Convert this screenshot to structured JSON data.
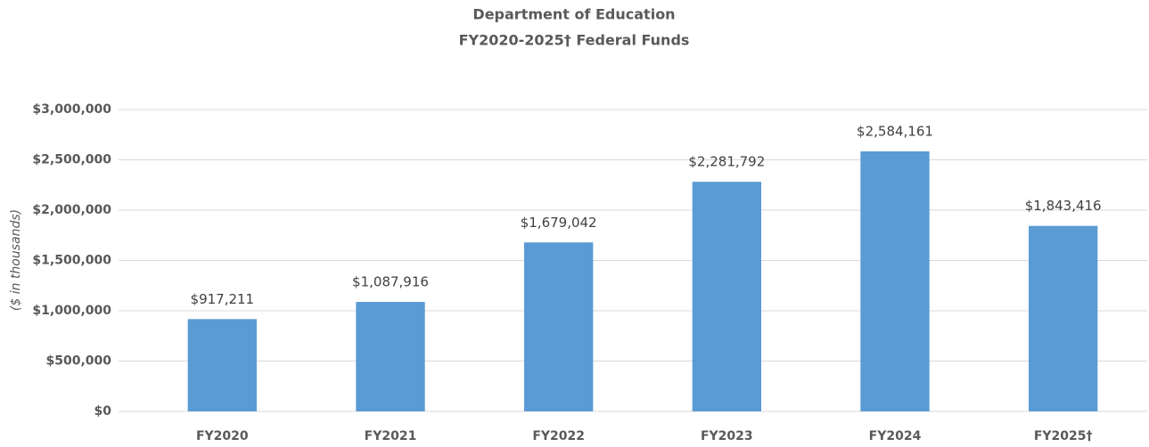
{
  "chart_data": {
    "type": "bar",
    "title": "Department of Education",
    "subtitle": "FY2020-2025† Federal Funds",
    "y_axis_label": "($ in thousands)",
    "categories": [
      "FY2020",
      "FY2021",
      "FY2022",
      "FY2023",
      "FY2024",
      "FY2025†"
    ],
    "values": [
      917211,
      1087916,
      1679042,
      2281792,
      2584161,
      1843416
    ],
    "value_labels": [
      "$917,211",
      "$1,087,916",
      "$1,679,042",
      "$2,281,792",
      "$2,584,161",
      "$1,843,416"
    ],
    "color": "#5b9bd5",
    "ylim": [
      0,
      3000000
    ],
    "yticks": [
      {
        "value": 0,
        "label": "$0"
      },
      {
        "value": 500000,
        "label": "$500,000"
      },
      {
        "value": 1000000,
        "label": "$1,000,000"
      },
      {
        "value": 1500000,
        "label": "$1,500,000"
      },
      {
        "value": 2000000,
        "label": "$2,000,000"
      },
      {
        "value": 2500000,
        "label": "$2,500,000"
      },
      {
        "value": 3000000,
        "label": "$3,000,000"
      }
    ],
    "grid": true
  }
}
